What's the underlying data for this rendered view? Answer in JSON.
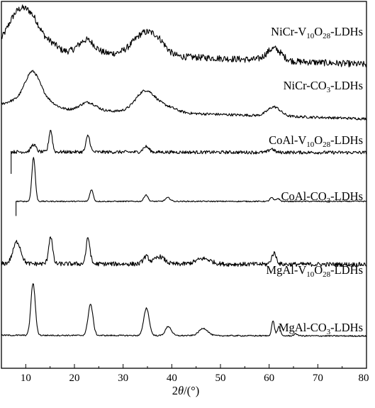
{
  "chart_data": {
    "type": "line",
    "title": "",
    "xlabel_parts": [
      "2",
      "θ",
      "/(°)"
    ],
    "ylabel": "",
    "xlim": [
      5,
      80
    ],
    "xticks": [
      10,
      20,
      30,
      40,
      50,
      60,
      70,
      80
    ],
    "yaxis_ticks": false,
    "grid": false,
    "legend": "labels beside each curve",
    "series": [
      {
        "name": "NiCr-V10O28-LDHs",
        "label_parts": [
          [
            "NiCr-V",
            ""
          ],
          [
            "10",
            "sub"
          ],
          [
            "O",
            ""
          ],
          [
            "28",
            "sub"
          ],
          [
            "-LDHs",
            ""
          ]
        ],
        "baseline": 0.87,
        "offset": 0.0,
        "start_x": 5.0,
        "end_value": 0.828,
        "noise": 0.009,
        "peaks": [
          [
            7.5,
            0.04,
            2.0
          ],
          [
            9.5,
            0.075,
            2.3
          ],
          [
            12.0,
            0.04,
            1.8
          ],
          [
            15.5,
            0.015,
            1.2
          ],
          [
            22.5,
            0.035,
            1.6
          ],
          [
            34.5,
            0.06,
            2.4
          ],
          [
            37.5,
            0.02,
            1.5
          ],
          [
            61.0,
            0.033,
            1.5
          ]
        ]
      },
      {
        "name": "NiCr-CO3-LDHs",
        "label_parts": [
          [
            "NiCr-CO",
            ""
          ],
          [
            "3",
            "sub"
          ],
          [
            "-LDHs",
            ""
          ]
        ],
        "baseline": 0.71,
        "offset": 0.0,
        "start_x": 5.0,
        "end_value": 0.68,
        "noise": 0.0035,
        "peaks": [
          [
            8.0,
            0.02,
            2.5
          ],
          [
            11.3,
            0.082,
            1.5
          ],
          [
            13.8,
            0.025,
            2.0
          ],
          [
            22.8,
            0.022,
            1.6
          ],
          [
            34.6,
            0.058,
            2.0
          ],
          [
            39.0,
            0.015,
            2.0
          ],
          [
            61.0,
            0.025,
            1.3
          ]
        ]
      },
      {
        "name": "CoAl-V10O28-LDHs",
        "label_parts": [
          [
            "CoAl-V",
            ""
          ],
          [
            "10",
            "sub"
          ],
          [
            "O",
            ""
          ],
          [
            "28",
            "sub"
          ],
          [
            "-LDHs",
            ""
          ]
        ],
        "baseline": 0.59,
        "offset": 0.0,
        "start_x": 7.0,
        "end_value": 0.588,
        "noise": 0.0045,
        "peaks": [
          [
            11.6,
            0.02,
            0.5
          ],
          [
            15.1,
            0.06,
            0.35
          ],
          [
            22.8,
            0.045,
            0.4
          ],
          [
            34.7,
            0.015,
            0.6
          ],
          [
            60.5,
            0.01,
            0.5
          ]
        ]
      },
      {
        "name": "CoAl-CO3-LDHs",
        "label_parts": [
          [
            "CoAl-CO",
            ""
          ],
          [
            "3",
            "sub"
          ],
          [
            "-LDHs",
            ""
          ]
        ],
        "baseline": 0.455,
        "offset": 0.0,
        "start_x": 8.0,
        "end_value": 0.455,
        "noise": 0.0015,
        "peaks": [
          [
            11.6,
            0.12,
            0.35
          ],
          [
            23.5,
            0.032,
            0.35
          ],
          [
            34.7,
            0.018,
            0.4
          ],
          [
            39.2,
            0.01,
            0.5
          ],
          [
            60.5,
            0.01,
            0.35
          ],
          [
            61.8,
            0.008,
            0.35
          ]
        ]
      },
      {
        "name": "MgAl-V10O28-LDHs",
        "label_parts": [
          [
            "MgAl-V",
            ""
          ],
          [
            "10",
            "sub"
          ],
          [
            "O",
            ""
          ],
          [
            "28",
            "sub"
          ],
          [
            "-LDHs",
            ""
          ]
        ],
        "baseline": 0.285,
        "offset": 0.0,
        "start_x": 5.0,
        "end_value": 0.283,
        "noise": 0.006,
        "peaks": [
          [
            8.2,
            0.06,
            0.8
          ],
          [
            15.1,
            0.075,
            0.4
          ],
          [
            22.8,
            0.07,
            0.4
          ],
          [
            34.7,
            0.02,
            0.6
          ],
          [
            37.5,
            0.02,
            1.0
          ],
          [
            46.5,
            0.015,
            1.5
          ],
          [
            61.0,
            0.03,
            0.5
          ]
        ]
      },
      {
        "name": "MgAl-CO3-LDHs",
        "label_parts": [
          [
            "MgAl-CO",
            ""
          ],
          [
            "3",
            "sub"
          ],
          [
            "-LDHs",
            ""
          ]
        ],
        "baseline": 0.09,
        "offset": 0.0,
        "start_x": 5.0,
        "end_value": 0.088,
        "noise": 0.0018,
        "peaks": [
          [
            11.5,
            0.142,
            0.45
          ],
          [
            23.3,
            0.085,
            0.5
          ],
          [
            34.8,
            0.075,
            0.55
          ],
          [
            39.3,
            0.025,
            0.6
          ],
          [
            46.5,
            0.02,
            0.9
          ],
          [
            60.8,
            0.04,
            0.3
          ],
          [
            62.0,
            0.025,
            0.3
          ],
          [
            65.5,
            0.005,
            0.4
          ]
        ]
      }
    ]
  }
}
